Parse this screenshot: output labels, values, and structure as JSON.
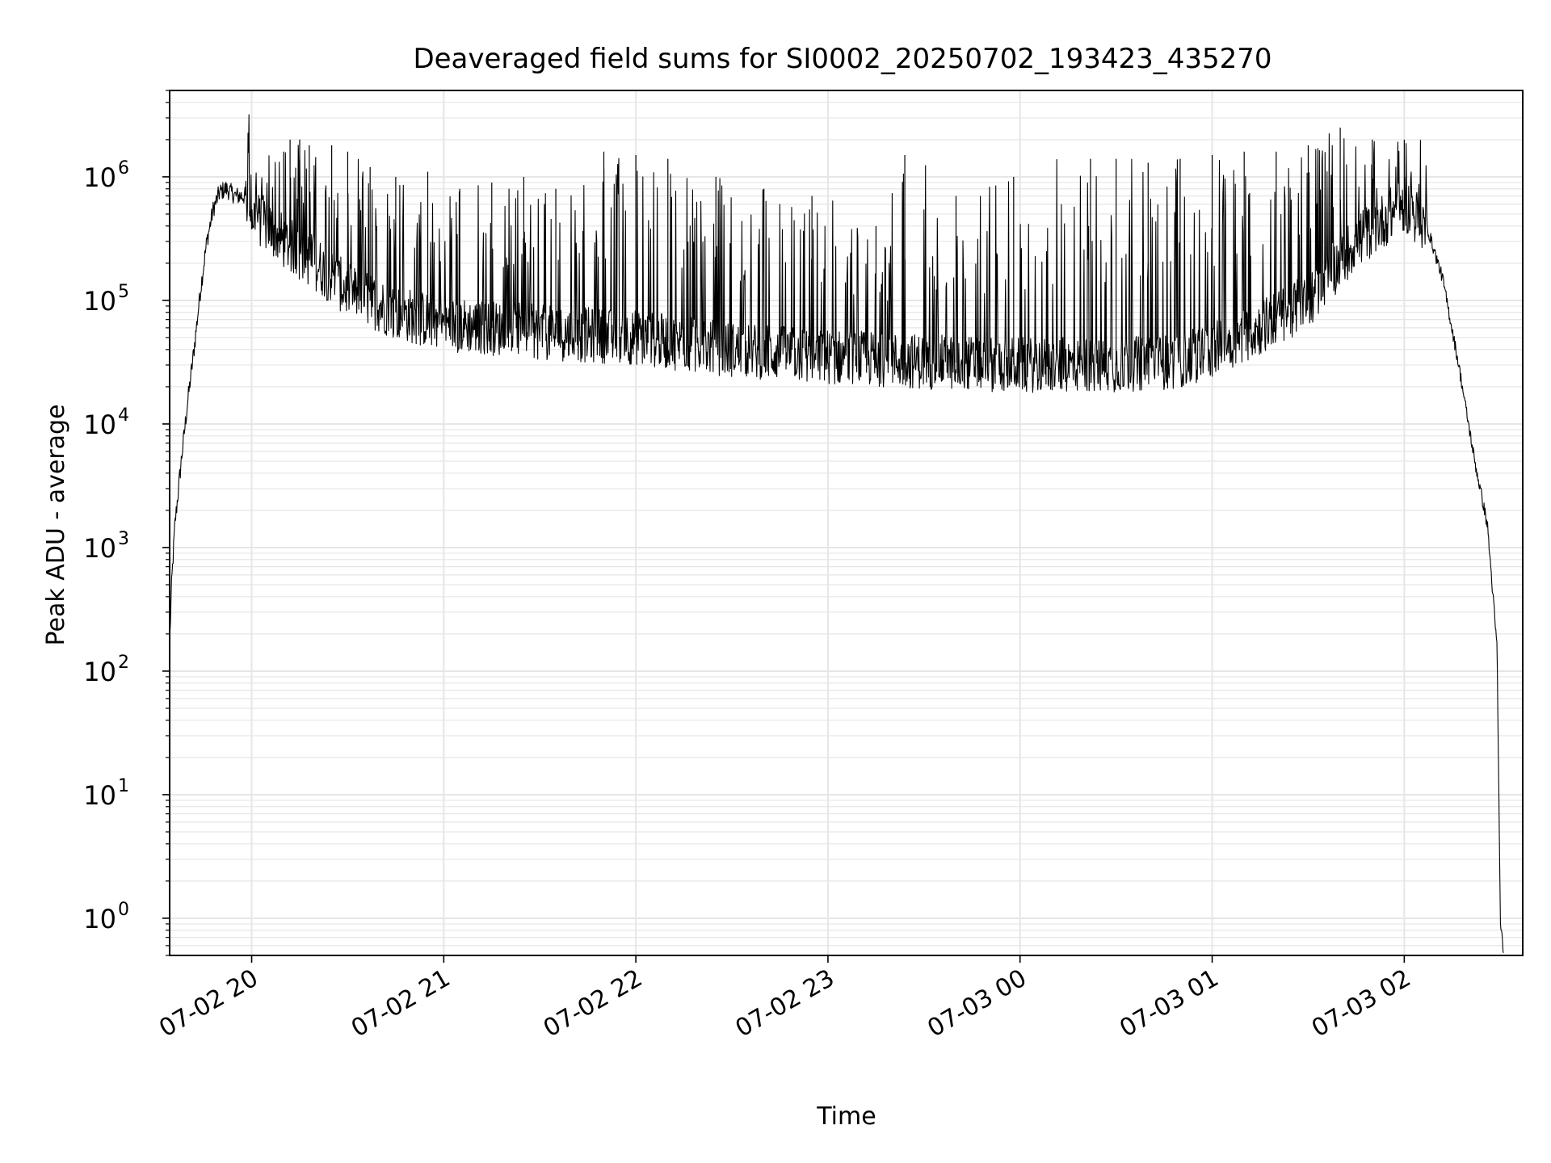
{
  "chart_data": {
    "type": "line",
    "title": "Deaveraged field sums for SI0002_20250702_193423_435270",
    "xlabel": "Time",
    "ylabel": "Peak ADU - average",
    "yscale": "log",
    "ylim": [
      0.5,
      5000000
    ],
    "xlim": [
      "2025-07-02T19:34:23",
      "2025-07-03T02:37:00"
    ],
    "grid": "major and minor",
    "line_color": "#000000",
    "grid_color": "#e6e6e6",
    "x_ticks": [
      {
        "value": "2025-07-02T20:00",
        "label": "07-02 20"
      },
      {
        "value": "2025-07-02T21:00",
        "label": "07-02 21"
      },
      {
        "value": "2025-07-02T22:00",
        "label": "07-02 22"
      },
      {
        "value": "2025-07-02T23:00",
        "label": "07-02 23"
      },
      {
        "value": "2025-07-03T00:00",
        "label": "07-03 00"
      },
      {
        "value": "2025-07-03T01:00",
        "label": "07-03 01"
      },
      {
        "value": "2025-07-03T02:00",
        "label": "07-03 02"
      }
    ],
    "y_ticks": [
      {
        "value": 1,
        "base": "10",
        "exp": "0"
      },
      {
        "value": 10,
        "base": "10",
        "exp": "1"
      },
      {
        "value": 100,
        "base": "10",
        "exp": "2"
      },
      {
        "value": 1000,
        "base": "10",
        "exp": "3"
      },
      {
        "value": 10000,
        "base": "10",
        "exp": "4"
      },
      {
        "value": 100000,
        "base": "10",
        "exp": "5"
      },
      {
        "value": 1000000,
        "base": "10",
        "exp": "6"
      }
    ],
    "series": [
      {
        "baseline": {
          "x": [
            "2025-07-02T19:34:30",
            "2025-07-02T19:35:00",
            "2025-07-02T19:36:00",
            "2025-07-02T19:38:00",
            "2025-07-02T19:40:00",
            "2025-07-02T19:42:00",
            "2025-07-02T19:44:00",
            "2025-07-02T19:46:00",
            "2025-07-02T19:48:00",
            "2025-07-02T19:50:00",
            "2025-07-02T19:52:00",
            "2025-07-02T19:55:00",
            "2025-07-02T19:58:00",
            "2025-07-02T20:00:00",
            "2025-07-02T20:05:00",
            "2025-07-02T20:10:00",
            "2025-07-02T20:20:00",
            "2025-07-02T20:30:00",
            "2025-07-02T20:45:00",
            "2025-07-02T21:00:00",
            "2025-07-02T21:30:00",
            "2025-07-02T22:00:00",
            "2025-07-02T22:30:00",
            "2025-07-02T23:00:00",
            "2025-07-02T23:30:00",
            "2025-07-03T00:00:00",
            "2025-07-03T00:30:00",
            "2025-07-03T00:50:00",
            "2025-07-03T01:00:00",
            "2025-07-03T01:15:00",
            "2025-07-03T01:30:00",
            "2025-07-03T01:45:00",
            "2025-07-03T02:00:00",
            "2025-07-03T02:07:00",
            "2025-07-03T02:12:00",
            "2025-07-03T02:17:00",
            "2025-07-03T02:22:00",
            "2025-07-03T02:26:00",
            "2025-07-03T02:29:00",
            "2025-07-03T02:30:00",
            "2025-07-03T02:31:00"
          ],
          "y": [
            200,
            500,
            1500,
            5000,
            15000,
            40000,
            120000,
            300000,
            550000,
            750000,
            800000,
            700000,
            700000,
            500000,
            400000,
            300000,
            200000,
            120000,
            80000,
            65000,
            55000,
            50000,
            40000,
            35000,
            32000,
            30000,
            30000,
            32000,
            40000,
            60000,
            100000,
            300000,
            600000,
            400000,
            150000,
            30000,
            5000,
            1500,
            150,
            1,
            0.5
          ]
        },
        "spikes": [
          {
            "x": "2025-07-02T20:10:00",
            "y": 1600000
          },
          {
            "x": "2025-07-02T20:12:00",
            "y": 2000000
          },
          {
            "x": "2025-07-02T20:15:00",
            "y": 2000000
          },
          {
            "x": "2025-07-02T20:18:00",
            "y": 1800000
          },
          {
            "x": "2025-07-02T20:25:00",
            "y": 1800000
          },
          {
            "x": "2025-07-02T20:30:00",
            "y": 1600000
          },
          {
            "x": "2025-07-02T20:37:00",
            "y": 1200000
          },
          {
            "x": "2025-07-02T20:45:00",
            "y": 1000000
          },
          {
            "x": "2025-07-02T20:55:00",
            "y": 1100000
          },
          {
            "x": "2025-07-02T21:05:00",
            "y": 800000
          },
          {
            "x": "2025-07-02T21:15:00",
            "y": 900000
          },
          {
            "x": "2025-07-02T21:25:00",
            "y": 1000000
          },
          {
            "x": "2025-07-02T21:35:00",
            "y": 800000
          },
          {
            "x": "2025-07-02T21:50:00",
            "y": 1600000
          },
          {
            "x": "2025-07-02T22:00:00",
            "y": 1500000
          },
          {
            "x": "2025-07-02T22:10:00",
            "y": 1400000
          },
          {
            "x": "2025-07-02T22:25:00",
            "y": 1000000
          },
          {
            "x": "2025-07-02T22:40:00",
            "y": 800000
          },
          {
            "x": "2025-07-02T22:55:00",
            "y": 700000
          },
          {
            "x": "2025-07-02T23:15:00",
            "y": 400000
          },
          {
            "x": "2025-07-02T23:24:00",
            "y": 1500000
          },
          {
            "x": "2025-07-02T23:40:00",
            "y": 700000
          },
          {
            "x": "2025-07-02T23:58:00",
            "y": 1000000
          },
          {
            "x": "2025-07-03T00:22:00",
            "y": 1400000
          },
          {
            "x": "2025-07-03T00:30:00",
            "y": 1400000
          },
          {
            "x": "2025-07-03T00:40:00",
            "y": 1300000
          },
          {
            "x": "2025-07-03T00:50:00",
            "y": 1400000
          },
          {
            "x": "2025-07-03T01:00:00",
            "y": 1500000
          },
          {
            "x": "2025-07-03T01:10:00",
            "y": 1600000
          },
          {
            "x": "2025-07-03T01:20:00",
            "y": 1600000
          },
          {
            "x": "2025-07-03T01:30:00",
            "y": 1800000
          },
          {
            "x": "2025-07-03T01:40:00",
            "y": 2500000
          },
          {
            "x": "2025-07-03T01:50:00",
            "y": 2000000
          },
          {
            "x": "2025-07-03T02:00:00",
            "y": 2000000
          }
        ]
      }
    ]
  }
}
